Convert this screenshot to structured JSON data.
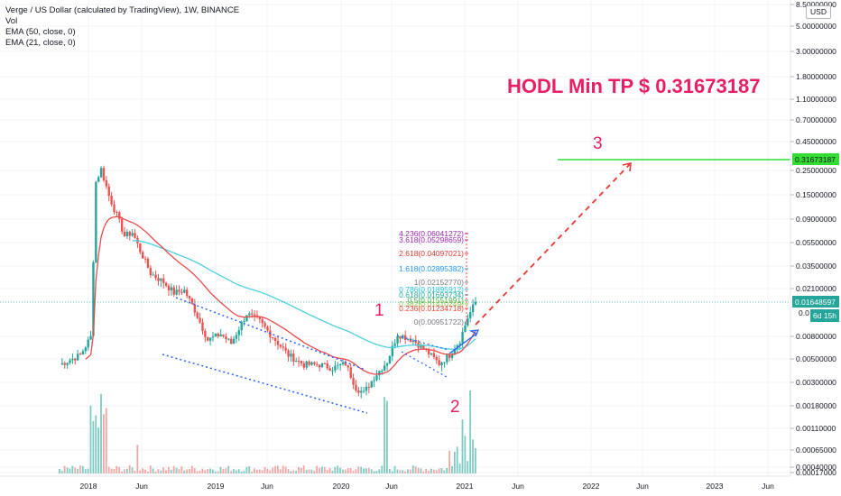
{
  "legend": {
    "symbol": "Verge / US Dollar (calculated by TradingView), 1W, BINANCE",
    "vol": "Vol",
    "ema50": "EMA (50, close, 0)",
    "ema21": "EMA (21, close, 0)"
  },
  "currency": "USD",
  "colors": {
    "up": "#26a69a",
    "down": "#ef5350",
    "ema50": "#4dd0e1",
    "ema21": "#e84b4b",
    "annotation": "#e91e63",
    "target_line": "#33dd33",
    "arrow": "#e53935",
    "channel": "#2962ff"
  },
  "annotations": {
    "headline": "HODL Min TP $ 0.31673187",
    "wave1": "1",
    "wave2": "2",
    "wave3": "3"
  },
  "price_badges": {
    "target": "0.31673187",
    "current": "0.01648597",
    "countdown": "6d 15h",
    "partial": "0.0"
  },
  "chart_data": {
    "type": "candlestick",
    "x_ticks": [
      "2018",
      "Jun",
      "2019",
      "Jun",
      "2020",
      "Jun",
      "2021",
      "Jun",
      "2022",
      "Jun",
      "2023",
      "Jun"
    ],
    "y_ticks": [
      "8.50000000",
      "5.00000000",
      "3.00000000",
      "1.80000000",
      "1.10000000",
      "0.70000000",
      "0.45000000",
      "0.25000000",
      "0.15000000",
      "0.09000000",
      "0.05500000",
      "0.03500000",
      "0.02100000",
      "0.00800000",
      "0.00500000",
      "0.00300000",
      "0.00180000",
      "0.00110000",
      "0.00065000",
      "0.00040000",
      "0.00017000"
    ],
    "y_scale": "log",
    "fib_levels": [
      {
        "label": "4.236(0.06041272)",
        "value": 0.06041272,
        "color": "#9c27b0"
      },
      {
        "label": "3.618(0.05298659)",
        "value": 0.05298659,
        "color": "#9c27b0"
      },
      {
        "label": "2.618(0.04097021)",
        "value": 0.04097021,
        "color": "#e53935"
      },
      {
        "label": "1.618(0.02895382)",
        "value": 0.02895382,
        "color": "#2196f3"
      },
      {
        "label": "1(0.02152770)",
        "value": 0.0215277,
        "color": "#787b86"
      },
      {
        "label": "0.786(0.01895912)",
        "value": 0.01895912,
        "color": "#26c6da"
      },
      {
        "label": "0.618(0.01693734)",
        "value": 0.01693734,
        "color": "#26a69a"
      },
      {
        "label": "0.5(0.01551991)",
        "value": 0.01551991,
        "color": "#4caf50"
      },
      {
        "label": "0.382(0.01410249)",
        "value": 0.01410249,
        "color": "#8bc34a"
      },
      {
        "label": "0.236(0.01234718)",
        "value": 0.01234718,
        "color": "#f44336"
      },
      {
        "label": "0(0.00951722)",
        "value": 0.00951722,
        "color": "#787b86"
      }
    ],
    "target_price": 0.31673187,
    "current_price": 0.01648597
  }
}
